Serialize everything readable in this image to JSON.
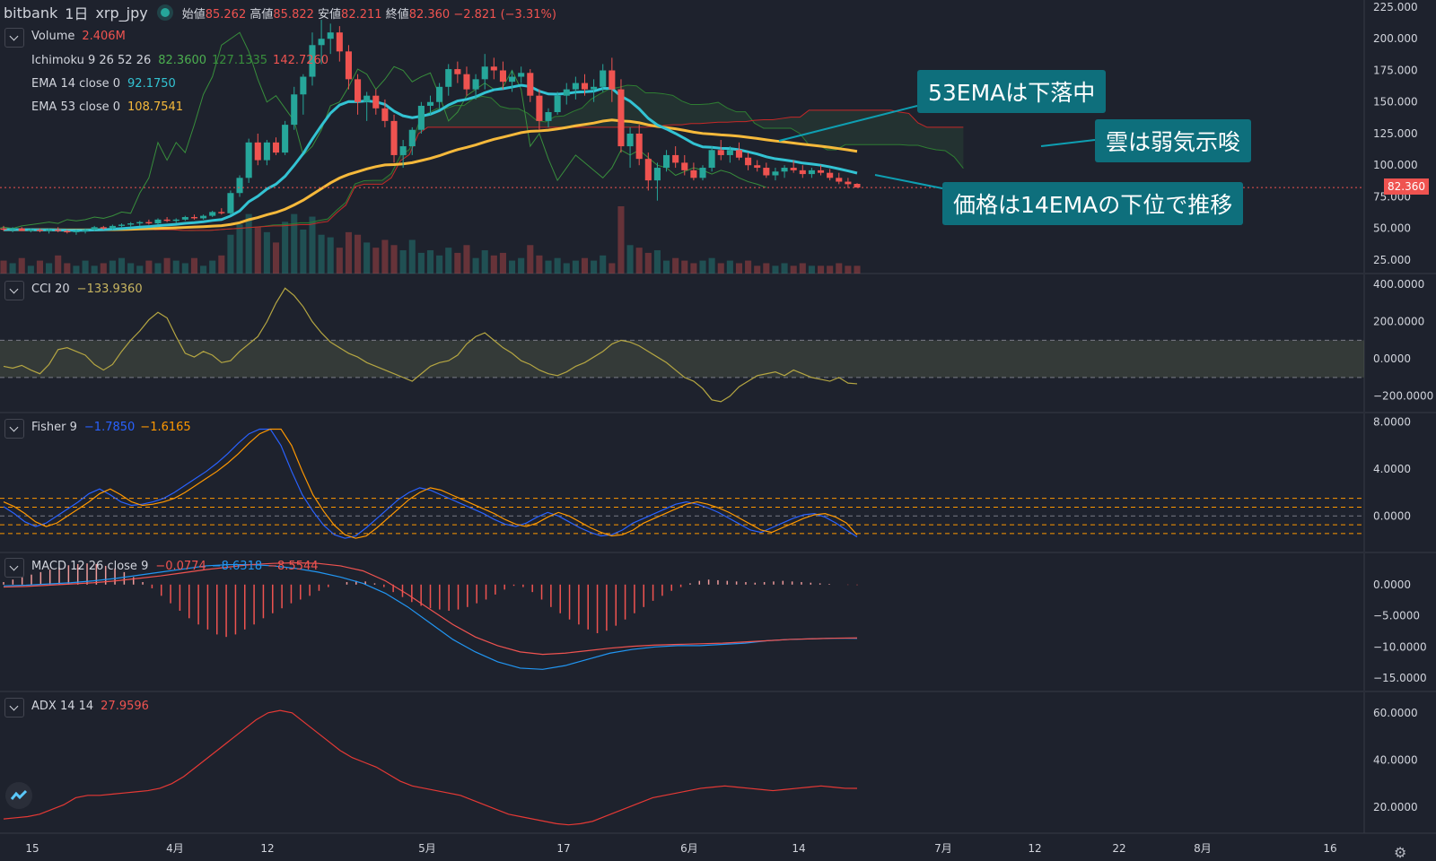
{
  "header": {
    "exchange": "bitbank",
    "interval": "1日",
    "symbol": "xrp_jpy",
    "open_label": "始値",
    "open": "85.262",
    "high_label": "高値",
    "high": "85.822",
    "low_label": "安値",
    "low": "82.211",
    "close_label": "終値",
    "close": "82.360",
    "change": "−2.821 (−3.31%)"
  },
  "legends": {
    "volume": {
      "label": "Volume",
      "value": "2.406M"
    },
    "ichimoku": {
      "label": "Ichimoku 9 26 52 26",
      "v1": "82.3600",
      "v2": "127.1335",
      "v3": "142.7260"
    },
    "ema14": {
      "label": "EMA 14 close 0",
      "value": "92.1750"
    },
    "ema53": {
      "label": "EMA 53 close 0",
      "value": "108.7541"
    },
    "cci": {
      "label": "CCI 20",
      "value": "−133.9360"
    },
    "fisher": {
      "label": "Fisher 9",
      "v1": "−1.7850",
      "v2": "−1.6165"
    },
    "macd": {
      "label": "MACD 12 26 close 9",
      "v1": "−0.0774",
      "v2": "−8.6318",
      "v3": "−8.5544"
    },
    "adx": {
      "label": "ADX 14 14",
      "value": "27.9596"
    }
  },
  "annotations": {
    "ema53": "53EMAは下落中",
    "cloud": "雲は弱気示唆",
    "price": "価格は14EMAの下位で推移"
  },
  "price_tag": "82.360",
  "colors": {
    "bg": "#1e222d",
    "up": "#26a69a",
    "down": "#ef5350",
    "ema14": "#33c3d3",
    "ema53": "#f6b93b",
    "accent": "#0e6f7c",
    "fisher1": "#2962ff",
    "fisher2": "#ff9800",
    "adx": "#e53935"
  },
  "icons": {
    "toggle": "chevron-down-icon",
    "logo": "tradingview-logo-icon",
    "settings": "gear-icon"
  },
  "chart_data": [
    {
      "type": "candlestick",
      "panel": "price",
      "yticks": [
        "225.000",
        "200.000",
        "175.000",
        "150.000",
        "125.000",
        "100.000",
        "75.000",
        "50.000",
        "25.000"
      ],
      "ylim": [
        25,
        225
      ],
      "x_labels": [
        "15",
        "4月",
        "12",
        "5月",
        "17",
        "6月",
        "14",
        "7月",
        "12",
        "22",
        "8月",
        "16"
      ],
      "candles": [
        [
          50,
          52,
          48,
          49
        ],
        [
          49,
          51,
          47,
          50
        ],
        [
          50,
          51,
          48,
          48
        ],
        [
          48,
          50,
          47,
          49
        ],
        [
          49,
          50,
          47,
          48
        ],
        [
          48,
          50,
          46,
          49
        ],
        [
          49,
          51,
          47,
          48
        ],
        [
          48,
          49,
          46,
          47
        ],
        [
          47,
          49,
          45,
          48
        ],
        [
          48,
          50,
          46,
          49
        ],
        [
          49,
          52,
          48,
          51
        ],
        [
          51,
          52,
          49,
          50
        ],
        [
          50,
          53,
          49,
          52
        ],
        [
          52,
          54,
          51,
          53
        ],
        [
          53,
          55,
          51,
          54
        ],
        [
          54,
          56,
          52,
          55
        ],
        [
          55,
          57,
          53,
          54
        ],
        [
          54,
          58,
          53,
          57
        ],
        [
          57,
          59,
          55,
          56
        ],
        [
          56,
          58,
          54,
          57
        ],
        [
          57,
          60,
          56,
          59
        ],
        [
          59,
          61,
          57,
          58
        ],
        [
          58,
          61,
          57,
          60
        ],
        [
          60,
          64,
          59,
          63
        ],
        [
          63,
          66,
          61,
          62
        ],
        [
          62,
          80,
          61,
          78
        ],
        [
          78,
          92,
          75,
          90
        ],
        [
          90,
          121,
          86,
          118
        ],
        [
          118,
          125,
          100,
          104
        ],
        [
          104,
          120,
          100,
          118
        ],
        [
          118,
          122,
          108,
          110
        ],
        [
          110,
          135,
          108,
          132
        ],
        [
          132,
          162,
          128,
          156
        ],
        [
          156,
          172,
          140,
          170
        ],
        [
          170,
          205,
          163,
          195
        ],
        [
          195,
          215,
          180,
          200
        ],
        [
          200,
          212,
          188,
          205
        ],
        [
          205,
          210,
          182,
          190
        ],
        [
          190,
          195,
          160,
          168
        ],
        [
          168,
          172,
          140,
          150
        ],
        [
          150,
          158,
          135,
          155
        ],
        [
          155,
          160,
          140,
          145
        ],
        [
          145,
          152,
          130,
          135
        ],
        [
          135,
          140,
          102,
          108
        ],
        [
          108,
          120,
          98,
          115
        ],
        [
          115,
          130,
          108,
          128
        ],
        [
          128,
          150,
          125,
          147
        ],
        [
          147,
          155,
          140,
          150
        ],
        [
          150,
          165,
          145,
          162
        ],
        [
          162,
          180,
          155,
          176
        ],
        [
          176,
          182,
          165,
          172
        ],
        [
          172,
          178,
          155,
          160
        ],
        [
          160,
          172,
          152,
          168
        ],
        [
          168,
          188,
          160,
          178
        ],
        [
          178,
          185,
          168,
          175
        ],
        [
          175,
          182,
          160,
          166
        ],
        [
          166,
          175,
          158,
          170
        ],
        [
          170,
          178,
          165,
          173
        ],
        [
          173,
          176,
          150,
          155
        ],
        [
          155,
          160,
          128,
          135
        ],
        [
          135,
          145,
          130,
          142
        ],
        [
          142,
          158,
          140,
          155
        ],
        [
          155,
          165,
          148,
          160
        ],
        [
          160,
          170,
          152,
          165
        ],
        [
          165,
          172,
          155,
          160
        ],
        [
          160,
          168,
          150,
          162
        ],
        [
          162,
          180,
          158,
          175
        ],
        [
          175,
          185,
          150,
          160
        ],
        [
          160,
          168,
          110,
          115
        ],
        [
          115,
          130,
          98,
          125
        ],
        [
          125,
          132,
          100,
          105
        ],
        [
          105,
          110,
          80,
          88
        ],
        [
          88,
          102,
          72,
          98
        ],
        [
          98,
          112,
          95,
          108
        ],
        [
          108,
          115,
          98,
          102
        ],
        [
          102,
          108,
          92,
          96
        ],
        [
          96,
          102,
          88,
          90
        ],
        [
          90,
          100,
          88,
          98
        ],
        [
          98,
          115,
          95,
          112
        ],
        [
          112,
          120,
          104,
          108
        ],
        [
          108,
          115,
          102,
          112
        ],
        [
          112,
          118,
          104,
          106
        ],
        [
          106,
          110,
          96,
          100
        ],
        [
          100,
          104,
          95,
          98
        ],
        [
          98,
          102,
          90,
          92
        ],
        [
          92,
          98,
          88,
          95
        ],
        [
          95,
          100,
          90,
          98
        ],
        [
          98,
          104,
          94,
          96
        ],
        [
          96,
          100,
          90,
          93
        ],
        [
          93,
          98,
          90,
          96
        ],
        [
          96,
          100,
          92,
          94
        ],
        [
          94,
          97,
          88,
          90
        ],
        [
          90,
          94,
          85,
          87
        ],
        [
          87,
          90,
          82,
          85
        ],
        [
          85.262,
          85.822,
          82.211,
          82.36
        ]
      ],
      "volume": [
        0.5,
        0.4,
        0.6,
        0.3,
        0.5,
        0.4,
        0.7,
        0.4,
        0.3,
        0.5,
        0.3,
        0.4,
        0.5,
        0.6,
        0.4,
        0.3,
        0.5,
        0.4,
        0.6,
        0.5,
        0.4,
        0.6,
        0.3,
        0.5,
        0.7,
        1.5,
        1.9,
        2.3,
        1.8,
        1.6,
        1.2,
        2.0,
        2.3,
        1.7,
        2.2,
        1.5,
        1.4,
        1.0,
        1.6,
        1.5,
        1.2,
        1.0,
        1.3,
        1.1,
        0.9,
        1.3,
        0.8,
        0.9,
        0.7,
        1.0,
        0.8,
        1.1,
        0.6,
        0.9,
        0.7,
        0.8,
        0.5,
        0.6,
        1.1,
        0.7,
        0.5,
        0.6,
        0.4,
        0.5,
        0.6,
        0.5,
        0.7,
        0.4,
        2.6,
        1.1,
        1.0,
        0.8,
        0.9,
        0.5,
        0.6,
        0.5,
        0.4,
        0.5,
        0.6,
        0.4,
        0.5,
        0.4,
        0.5,
        0.3,
        0.4,
        0.3,
        0.4,
        0.3,
        0.4,
        0.3,
        0.3,
        0.3,
        0.4,
        0.3,
        0.3
      ],
      "ema14_end": 92.175,
      "ema53_end": 108.7541,
      "last_price": 82.36
    },
    {
      "type": "line",
      "panel": "cci",
      "yticks": [
        "400.0000",
        "200.0000",
        "0.0000",
        "−200.0000"
      ],
      "ylim": [
        -250,
        420
      ],
      "bands": [
        100,
        -100
      ],
      "values": [
        -40,
        -50,
        -35,
        -60,
        -80,
        -30,
        50,
        60,
        40,
        20,
        -30,
        -60,
        -30,
        40,
        100,
        150,
        210,
        250,
        220,
        120,
        30,
        10,
        40,
        20,
        -20,
        -10,
        40,
        80,
        120,
        200,
        300,
        380,
        340,
        280,
        200,
        140,
        90,
        60,
        30,
        10,
        -20,
        -40,
        -60,
        -80,
        -100,
        -120,
        -80,
        -40,
        -20,
        -10,
        20,
        80,
        120,
        140,
        100,
        60,
        30,
        -10,
        -30,
        -60,
        -80,
        -90,
        -70,
        -40,
        -20,
        10,
        40,
        80,
        100,
        90,
        70,
        40,
        10,
        -20,
        -60,
        -100,
        -120,
        -160,
        -220,
        -230,
        -200,
        -150,
        -120,
        -90,
        -80,
        -70,
        -90,
        -60,
        -80,
        -100,
        -110,
        -120,
        -100,
        -130,
        -133.936
      ]
    },
    {
      "type": "line",
      "panel": "fisher",
      "yticks": [
        "8.0000",
        "4.0000",
        "0.0000"
      ],
      "ylim": [
        -2.5,
        8.2
      ],
      "levels": [
        1.5,
        0.75,
        0,
        -0.75,
        -1.5
      ],
      "series": [
        {
          "name": "Fisher",
          "values": [
            0.8,
            0.2,
            -0.5,
            -0.9,
            -0.6,
            0,
            0.6,
            1.2,
            1.9,
            2.3,
            1.8,
            1.2,
            0.9,
            1.0,
            1.2,
            1.5,
            2.0,
            2.6,
            3.2,
            3.8,
            4.5,
            5.3,
            6.2,
            7.0,
            7.4,
            7.4,
            6.0,
            3.8,
            1.8,
            0.4,
            -0.8,
            -1.6,
            -1.9,
            -1.7,
            -1.0,
            -0.2,
            0.6,
            1.4,
            2.0,
            2.4,
            2.2,
            1.8,
            1.4,
            1.0,
            0.6,
            0.2,
            -0.3,
            -0.7,
            -0.9,
            -0.6,
            -0.1,
            0.3,
            0.0,
            -0.5,
            -1.0,
            -1.4,
            -1.7,
            -1.6,
            -1.2,
            -0.6,
            -0.2,
            0.2,
            0.6,
            1.0,
            1.2,
            1.0,
            0.7,
            0.3,
            -0.2,
            -0.7,
            -1.2,
            -1.4,
            -1.0,
            -0.6,
            -0.2,
            0.1,
            0.2,
            -0.1,
            -0.6,
            -1.2,
            -1.785
          ]
        },
        {
          "name": "Trigger",
          "values": [
            1.2,
            0.8,
            0.2,
            -0.5,
            -0.9,
            -0.6,
            0,
            0.6,
            1.2,
            1.9,
            2.3,
            1.8,
            1.2,
            0.9,
            1.0,
            1.2,
            1.5,
            2.0,
            2.6,
            3.2,
            3.8,
            4.5,
            5.3,
            6.2,
            7.0,
            7.4,
            7.4,
            6.0,
            3.8,
            1.8,
            0.4,
            -0.8,
            -1.6,
            -1.9,
            -1.7,
            -1.0,
            -0.2,
            0.6,
            1.4,
            2.0,
            2.4,
            2.2,
            1.8,
            1.4,
            1.0,
            0.6,
            0.2,
            -0.3,
            -0.7,
            -0.9,
            -0.6,
            -0.1,
            0.3,
            0.0,
            -0.5,
            -1.0,
            -1.4,
            -1.7,
            -1.6,
            -1.2,
            -0.6,
            -0.2,
            0.2,
            0.6,
            1.0,
            1.2,
            1.0,
            0.7,
            0.3,
            -0.2,
            -0.7,
            -1.2,
            -1.4,
            -1.0,
            -0.6,
            -0.2,
            0.1,
            0.2,
            -0.1,
            -0.6,
            -1.6165
          ]
        }
      ]
    },
    {
      "type": "histogram+line",
      "panel": "macd",
      "yticks": [
        "0.0000",
        "−5.0000",
        "−10.0000",
        "−15.0000"
      ],
      "ylim": [
        -16,
        4
      ],
      "histogram": [
        0.4,
        0.8,
        1.2,
        1.6,
        2.0,
        2.4,
        2.8,
        3.1,
        3.3,
        3.4,
        3.3,
        3.0,
        2.6,
        2.0,
        1.2,
        0.4,
        -0.6,
        -1.8,
        -3.0,
        -4.2,
        -5.4,
        -6.4,
        -7.2,
        -8.0,
        -8.4,
        -8.0,
        -7.2,
        -6.4,
        -5.4,
        -4.6,
        -3.8,
        -3.0,
        -2.4,
        -1.8,
        -1.0,
        -0.4,
        0.0,
        0.4,
        0.6,
        0.5,
        0.2,
        -0.4,
        -1.2,
        -2.0,
        -2.8,
        -3.4,
        -3.8,
        -4.0,
        -4.2,
        -4.0,
        -3.6,
        -3.0,
        -2.4,
        -1.6,
        -0.8,
        -0.2,
        -0.4,
        -1.2,
        -2.4,
        -3.6,
        -4.6,
        -5.6,
        -6.4,
        -7.2,
        -7.8,
        -7.4,
        -6.6,
        -5.6,
        -4.6,
        -3.6,
        -2.6,
        -1.8,
        -1.0,
        -0.4,
        0.2,
        0.6,
        0.8,
        0.7,
        0.6,
        0.5,
        0.4,
        0.3,
        0.4,
        0.5,
        0.6,
        0.5,
        0.4,
        0.3,
        0.2,
        0.1,
        0.0,
        -0.05,
        -0.0774
      ],
      "series": [
        {
          "name": "MACD",
          "values": [
            -0.2,
            -0.1,
            0.1,
            0.3,
            0.6,
            1.0,
            1.5,
            2.0,
            2.5,
            3.0,
            3.2,
            3.2,
            3.0,
            2.6,
            2.0,
            1.2,
            0.2,
            -1.4,
            -3.6,
            -6.2,
            -8.8,
            -10.8,
            -12.4,
            -13.4,
            -13.6,
            -13.0,
            -12.0,
            -11.0,
            -10.4,
            -10.0,
            -9.8,
            -9.8,
            -9.6,
            -9.4,
            -9.0,
            -8.8,
            -8.7,
            -8.6,
            -8.6318
          ]
        },
        {
          "name": "Signal",
          "values": [
            -0.4,
            -0.3,
            -0.1,
            0.1,
            0.3,
            0.6,
            1.0,
            1.4,
            1.9,
            2.4,
            2.8,
            3.2,
            3.4,
            3.5,
            3.4,
            3.0,
            2.2,
            0.6,
            -1.6,
            -4.0,
            -6.4,
            -8.4,
            -9.8,
            -10.8,
            -11.2,
            -11.0,
            -10.6,
            -10.2,
            -9.9,
            -9.7,
            -9.6,
            -9.5,
            -9.4,
            -9.2,
            -9.0,
            -8.8,
            -8.7,
            -8.6,
            -8.5544
          ]
        }
      ]
    },
    {
      "type": "line",
      "panel": "adx",
      "yticks": [
        "60.0000",
        "40.0000",
        "20.0000"
      ],
      "ylim": [
        12,
        66
      ],
      "values": [
        15,
        15.5,
        16,
        17,
        19,
        21,
        24,
        25,
        25,
        25.5,
        26,
        26.5,
        27,
        28,
        30,
        33,
        37,
        41,
        45,
        49,
        53,
        57,
        60,
        61,
        60,
        56,
        52,
        48,
        44,
        41,
        39,
        37,
        34,
        31,
        29,
        28,
        27,
        26,
        25,
        23,
        21,
        19,
        17,
        16,
        15,
        14,
        13,
        12.5,
        13,
        14,
        16,
        18,
        20,
        22,
        24,
        25,
        26,
        27,
        28,
        28.5,
        29,
        28.5,
        28,
        27.5,
        27,
        27.5,
        28,
        28.5,
        29,
        28.5,
        28,
        27.9596
      ]
    }
  ]
}
